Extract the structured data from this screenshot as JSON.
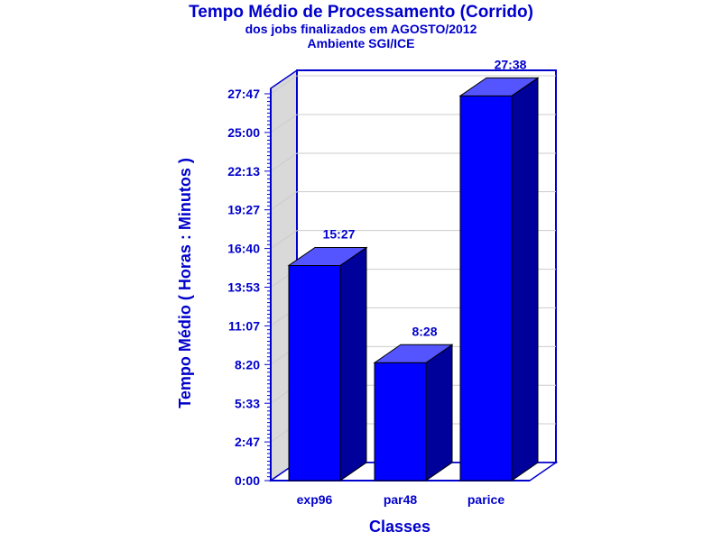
{
  "chart_data": {
    "type": "bar",
    "title": "Tempo Médio de Processamento (Corrido)",
    "subtitle": [
      "dos jobs finalizados em AGOSTO/2012",
      "Ambiente SGI/ICE"
    ],
    "xlabel": "Classes",
    "ylabel": "Tempo Médio ( Horas : Minutos )",
    "categories": [
      "exp96",
      "par48",
      "parice"
    ],
    "values": [
      927,
      508,
      1658
    ],
    "value_labels": [
      "15:27",
      "8:28",
      "27:38"
    ],
    "ylim": [
      0,
      1667
    ],
    "yticks": [
      {
        "value": 0,
        "label": "0:00"
      },
      {
        "value": 167,
        "label": "2:47"
      },
      {
        "value": 333,
        "label": "5:33"
      },
      {
        "value": 500,
        "label": "8:20"
      },
      {
        "value": 667,
        "label": "11:07"
      },
      {
        "value": 833,
        "label": "13:53"
      },
      {
        "value": 1000,
        "label": "16:40"
      },
      {
        "value": 1167,
        "label": "19:27"
      },
      {
        "value": 1333,
        "label": "22:13"
      },
      {
        "value": 1500,
        "label": "25:00"
      },
      {
        "value": 1667,
        "label": "27:47"
      }
    ],
    "value_unit": "minutes",
    "grid": true,
    "style": "3d",
    "colors": {
      "bar_front": "#0000ff",
      "bar_top": "#5555ff",
      "bar_side": "#00009a",
      "axis": "#0000cc",
      "back_wall": "#d9d9d9",
      "gridline": "#cccccc",
      "text": "#0000cc"
    }
  }
}
